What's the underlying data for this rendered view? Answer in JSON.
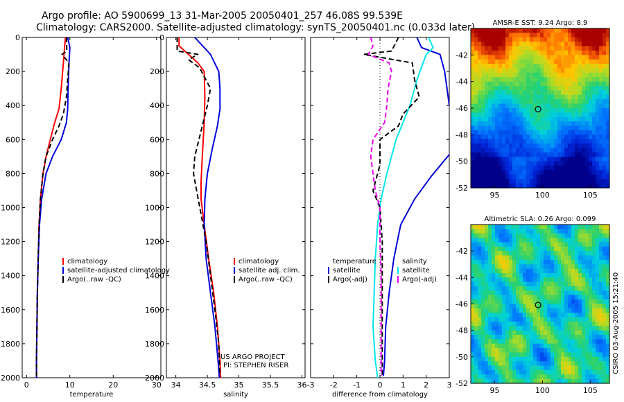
{
  "header": {
    "title_line1": "Argo profile: AO 5900699_13 31-Mar-2005 20050401_257 46.08S 99.539E",
    "title_line2": "Climatology: CARS2000. Satellite-adjusted climatology: synTS_20050401.nc (0.033d later)"
  },
  "notes": {
    "project": "US ARGO PROJECT",
    "pi": "PI: STEPHEN RISER",
    "stamp": "CSIRO 03-Aug-2005 15:21:40"
  },
  "colors": {
    "red": "#ff0000",
    "blue": "#0000dd",
    "black": "#000000",
    "cyan": "#00e5ee",
    "magenta": "#ee00ee"
  },
  "chart_data": [
    {
      "id": "temperature",
      "type": "line",
      "xlabel": "temperature",
      "ylabel": "",
      "xlim": [
        -1,
        31
      ],
      "ylim": [
        2000,
        0
      ],
      "xticks": [
        0,
        10,
        20,
        30
      ],
      "yticks": [
        0,
        200,
        400,
        600,
        800,
        1000,
        1200,
        1400,
        1600,
        1800,
        2000
      ],
      "legend": [
        "climatology",
        "satellite-adjusted climatology",
        "Argo(..raw -QC)"
      ],
      "legend_position": "center-right",
      "series": [
        {
          "name": "climatology",
          "color": "red",
          "dash": "",
          "points": [
            [
              9.0,
              0
            ],
            [
              8.8,
              50
            ],
            [
              8.5,
              150
            ],
            [
              8.0,
              300
            ],
            [
              7.5,
              420
            ],
            [
              6.5,
              500
            ],
            [
              5.5,
              600
            ],
            [
              4.5,
              700
            ],
            [
              3.8,
              800
            ],
            [
              3.2,
              950
            ],
            [
              2.9,
              1100
            ],
            [
              2.7,
              1300
            ],
            [
              2.5,
              1500
            ],
            [
              2.4,
              1700
            ],
            [
              2.3,
              1900
            ],
            [
              2.3,
              2000
            ]
          ]
        },
        {
          "name": "satellite-adjusted climatology",
          "color": "blue",
          "dash": "",
          "points": [
            [
              9.5,
              0
            ],
            [
              10.0,
              60
            ],
            [
              9.8,
              150
            ],
            [
              9.6,
              300
            ],
            [
              9.5,
              420
            ],
            [
              9.2,
              500
            ],
            [
              8.0,
              600
            ],
            [
              6.0,
              700
            ],
            [
              4.5,
              800
            ],
            [
              3.5,
              950
            ],
            [
              3.0,
              1100
            ],
            [
              2.7,
              1300
            ],
            [
              2.5,
              1500
            ],
            [
              2.4,
              1700
            ],
            [
              2.3,
              1900
            ],
            [
              2.3,
              2000
            ]
          ]
        },
        {
          "name": "Argo(..raw -QC)",
          "color": "black",
          "dash": "7,4",
          "points": [
            [
              9.2,
              0
            ],
            [
              9.3,
              80
            ],
            [
              8.2,
              100
            ],
            [
              9.8,
              150
            ],
            [
              9.5,
              250
            ],
            [
              9.2,
              350
            ],
            [
              8.5,
              450
            ],
            [
              7.5,
              520
            ],
            [
              6.0,
              600
            ],
            [
              4.5,
              700
            ],
            [
              3.8,
              800
            ],
            [
              3.2,
              950
            ],
            [
              2.9,
              1100
            ],
            [
              2.7,
              1300
            ],
            [
              2.5,
              1500
            ],
            [
              2.4,
              1700
            ],
            [
              2.3,
              1900
            ],
            [
              2.3,
              1990
            ]
          ]
        }
      ]
    },
    {
      "id": "salinity",
      "type": "line",
      "xlabel": "salinity",
      "ylabel": "",
      "xlim": [
        33.85,
        36.05
      ],
      "ylim": [
        2000,
        0
      ],
      "xticks": [
        34,
        34.5,
        35,
        35.5,
        36
      ],
      "legend": [
        "climatology",
        "satellite adj. clim.",
        "Argo(..raw -QC)"
      ],
      "legend_position": "center-right",
      "series": [
        {
          "name": "climatology",
          "color": "red",
          "dash": "",
          "points": [
            [
              34.05,
              0
            ],
            [
              34.05,
              50
            ],
            [
              34.2,
              100
            ],
            [
              34.35,
              150
            ],
            [
              34.45,
              200
            ],
            [
              34.46,
              350
            ],
            [
              34.45,
              500
            ],
            [
              34.42,
              700
            ],
            [
              34.4,
              850
            ],
            [
              34.4,
              950
            ],
            [
              34.45,
              1100
            ],
            [
              34.52,
              1300
            ],
            [
              34.6,
              1500
            ],
            [
              34.66,
              1700
            ],
            [
              34.7,
              1900
            ],
            [
              34.71,
              2000
            ]
          ]
        },
        {
          "name": "satellite adj. clim.",
          "color": "blue",
          "dash": "",
          "points": [
            [
              34.3,
              0
            ],
            [
              34.4,
              40
            ],
            [
              34.55,
              100
            ],
            [
              34.68,
              200
            ],
            [
              34.7,
              300
            ],
            [
              34.7,
              420
            ],
            [
              34.66,
              520
            ],
            [
              34.58,
              650
            ],
            [
              34.5,
              800
            ],
            [
              34.46,
              950
            ],
            [
              34.45,
              1100
            ],
            [
              34.48,
              1300
            ],
            [
              34.55,
              1500
            ],
            [
              34.62,
              1700
            ],
            [
              34.67,
              1900
            ],
            [
              34.69,
              2000
            ]
          ]
        },
        {
          "name": "Argo(..raw -QC)",
          "color": "black",
          "dash": "7,4",
          "points": [
            [
              34.02,
              0
            ],
            [
              34.02,
              80
            ],
            [
              34.35,
              100
            ],
            [
              34.2,
              130
            ],
            [
              34.38,
              180
            ],
            [
              34.45,
              230
            ],
            [
              34.55,
              300
            ],
            [
              34.5,
              400
            ],
            [
              34.4,
              550
            ],
            [
              34.3,
              700
            ],
            [
              34.28,
              800
            ],
            [
              34.33,
              900
            ],
            [
              34.38,
              1000
            ],
            [
              34.48,
              1200
            ],
            [
              34.55,
              1400
            ],
            [
              34.62,
              1600
            ],
            [
              34.68,
              1800
            ],
            [
              34.7,
              1990
            ]
          ]
        }
      ]
    },
    {
      "id": "difference",
      "type": "line",
      "xlabel": "difference from climatology",
      "ylabel": "",
      "xlim": [
        -3,
        3
      ],
      "ylim": [
        2000,
        0
      ],
      "xticks": [
        -3,
        -2,
        -1,
        0,
        1,
        2,
        3
      ],
      "legend_left": [
        "temperature",
        "satellite",
        "Argo(-adj)"
      ],
      "legend_right": [
        "salinity",
        "satellite",
        "Argo(-adj)"
      ],
      "legend_position": "center",
      "series": [
        {
          "name": "satellite",
          "quantity": "temperature",
          "color": "blue",
          "dash": "",
          "points": [
            [
              1.6,
              0
            ],
            [
              1.8,
              60
            ],
            [
              2.6,
              100
            ],
            [
              2.8,
              200
            ],
            [
              2.9,
              300
            ],
            [
              3.0,
              400
            ],
            [
              3.2,
              450
            ]
          ]
        },
        {
          "name": "satellite",
          "quantity": "temperature",
          "color": "blue",
          "dash": "",
          "points": [
            [
              3.05,
              680
            ],
            [
              2.2,
              820
            ],
            [
              1.5,
              950
            ],
            [
              0.9,
              1100
            ],
            [
              0.6,
              1300
            ],
            [
              0.4,
              1500
            ],
            [
              0.25,
              1700
            ],
            [
              0.2,
              1900
            ],
            [
              0.15,
              1990
            ]
          ]
        },
        {
          "name": "satellite",
          "quantity": "salinity",
          "color": "cyan",
          "dash": "",
          "points": [
            [
              2.1,
              0
            ],
            [
              2.3,
              60
            ],
            [
              2.0,
              100
            ],
            [
              1.6,
              250
            ],
            [
              1.3,
              400
            ],
            [
              1.0,
              500
            ],
            [
              0.7,
              600
            ],
            [
              0.5,
              700
            ],
            [
              0.3,
              800
            ],
            [
              0.05,
              950
            ],
            [
              -0.1,
              1100
            ],
            [
              -0.2,
              1300
            ],
            [
              -0.25,
              1500
            ],
            [
              -0.3,
              1700
            ],
            [
              -0.2,
              1900
            ],
            [
              -0.1,
              2000
            ]
          ]
        },
        {
          "name": "Argo(-adj)",
          "quantity": "temperature",
          "color": "black",
          "dash": "7,4",
          "points": [
            [
              0.8,
              0
            ],
            [
              0.5,
              80
            ],
            [
              -0.7,
              100
            ],
            [
              1.4,
              150
            ],
            [
              1.5,
              250
            ],
            [
              1.7,
              350
            ],
            [
              1.0,
              450
            ],
            [
              0.8,
              520
            ],
            [
              0.0,
              600
            ],
            [
              0.0,
              750
            ],
            [
              -0.3,
              900
            ],
            [
              0.0,
              1000
            ],
            [
              0.1,
              1200
            ],
            [
              0.1,
              1400
            ],
            [
              0.1,
              1600
            ],
            [
              0.1,
              1800
            ],
            [
              0.1,
              1990
            ]
          ]
        },
        {
          "name": "Argo(-adj)",
          "quantity": "salinity",
          "color": "magenta",
          "dash": "7,4",
          "points": [
            [
              -0.4,
              0
            ],
            [
              -0.3,
              50
            ],
            [
              -0.5,
              100
            ],
            [
              0.4,
              150
            ],
            [
              0.5,
              200
            ],
            [
              0.35,
              300
            ],
            [
              0.3,
              400
            ],
            [
              0.2,
              500
            ],
            [
              -0.3,
              600
            ],
            [
              -0.4,
              700
            ],
            [
              -0.3,
              800
            ],
            [
              -0.2,
              900
            ],
            [
              0.0,
              1000
            ],
            [
              0.0,
              1200
            ],
            [
              0.05,
              1400
            ],
            [
              0.05,
              1600
            ],
            [
              0.05,
              1800
            ],
            [
              0.05,
              1990
            ]
          ]
        }
      ]
    },
    {
      "id": "sst_map",
      "type": "heatmap",
      "title": "AMSR-E SST: 9.24 Argo: 8.9",
      "xlim": [
        92.5,
        107
      ],
      "ylim": [
        -52,
        -40
      ],
      "xticks": [
        95,
        100,
        105
      ],
      "yticks": [
        -42,
        -44,
        -46,
        -48,
        -50,
        -52
      ],
      "profile_location": [
        99.539,
        -46.08
      ]
    },
    {
      "id": "sla_map",
      "type": "heatmap",
      "title": "Altimetric SLA: 0.26 Argo: 0.099",
      "xlim": [
        92.5,
        107
      ],
      "ylim": [
        -52,
        -40
      ],
      "xticks": [
        95,
        100,
        105
      ],
      "yticks": [
        -42,
        -44,
        -46,
        -48,
        -50,
        -52
      ],
      "profile_location": [
        99.539,
        -46.08
      ]
    }
  ]
}
